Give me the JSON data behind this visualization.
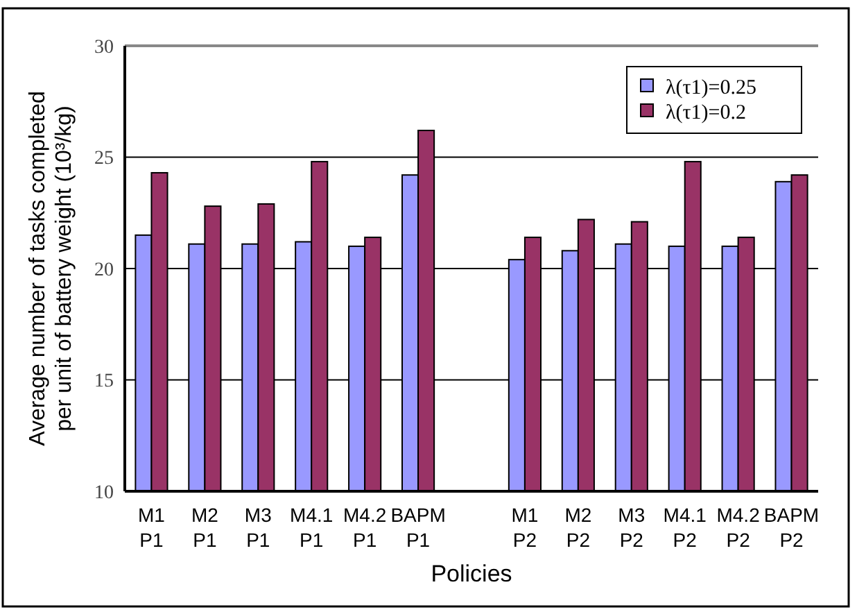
{
  "chart_data": {
    "type": "bar",
    "xlabel": "Policies",
    "ylabel": "Average number of tasks completed\nper unit of battery weight  (10³/kg)",
    "categories": [
      "M1 P1",
      "M2 P1",
      "M3 P1",
      "M4.1 P1",
      "M4.2 P1",
      "BAPM P1",
      null,
      "M1 P2",
      "M2 P2",
      "M3 P2",
      "M4.1 P2",
      "M4.2 P2",
      "BAPM P2"
    ],
    "series": [
      {
        "name": "λ(τ1)=0.25",
        "color": "#9999ff",
        "values": [
          21.5,
          21.1,
          21.1,
          21.2,
          21.0,
          24.2,
          null,
          20.4,
          20.8,
          21.1,
          21.0,
          21.0,
          23.9
        ]
      },
      {
        "name": "λ(τ1)=0.2",
        "color": "#993366",
        "values": [
          24.3,
          22.8,
          22.9,
          24.8,
          21.4,
          26.2,
          null,
          21.4,
          22.2,
          22.1,
          24.8,
          21.4,
          24.2
        ]
      }
    ],
    "ylim": [
      10,
      30
    ],
    "yticks": [
      10,
      15,
      20,
      25,
      30
    ],
    "grid": "y",
    "legend": "top right"
  }
}
